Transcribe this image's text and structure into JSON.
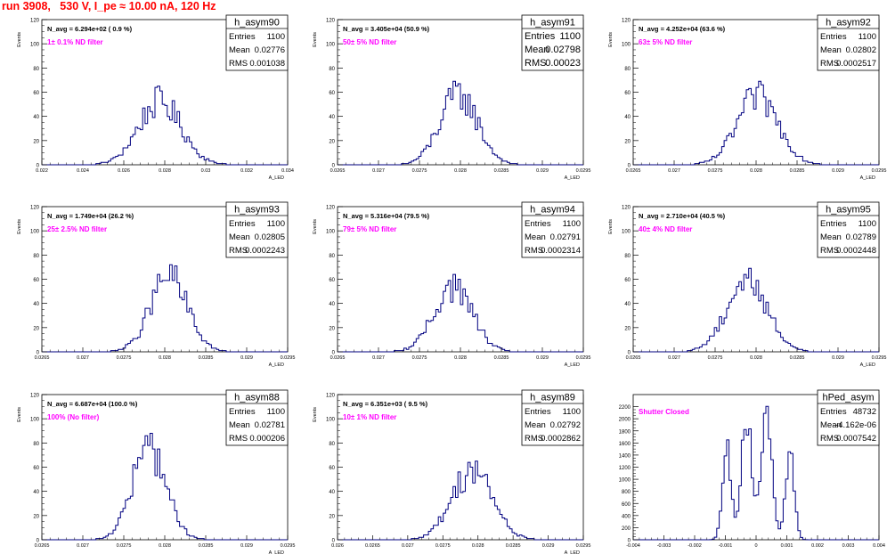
{
  "title": "run 3908,   530 V, I_pe ≈ 10.00 nA, 120 Hz",
  "colors": {
    "line": "#000080",
    "annotation": "#ff00ff",
    "title": "#ff0000",
    "axis": "#000000"
  },
  "chart_data": [
    {
      "type": "histogram",
      "name": "h_asym90",
      "ylabel": "Events",
      "xlabel": "A_LED",
      "xlim": [
        0.022,
        0.034
      ],
      "ylim": [
        0,
        120
      ],
      "xticks": [
        "0.022",
        "0.024",
        "0.026",
        "0.028",
        "0.03",
        "0.032",
        "0.034"
      ],
      "xtick_values": [
        0.022,
        0.024,
        0.026,
        0.028,
        0.03,
        0.032,
        0.034
      ],
      "yticks": [
        "0",
        "20",
        "40",
        "60",
        "80",
        "100",
        "120"
      ],
      "ytick_values": [
        0,
        20,
        40,
        60,
        80,
        100,
        120
      ],
      "stats": {
        "Entries": "1100",
        "Mean": "0.02776",
        "RMS": "0.001038"
      },
      "navg": "N_avg = 6.294e+02 ( 0.9 %)",
      "label": "1± 0.1% ND filter",
      "mean": 0.02776,
      "rms": 0.001038,
      "entries": 1100,
      "peak": 52
    },
    {
      "type": "histogram",
      "name": "h_asym91",
      "ylabel": "Events",
      "xlabel": "A_LED",
      "xlim": [
        0.0265,
        0.0295
      ],
      "ylim": [
        0,
        120
      ],
      "xticks": [
        "0.0265",
        "0.027",
        "0.0275",
        "0.028",
        "0.0285",
        "0.029",
        "0.0295"
      ],
      "xtick_values": [
        0.0265,
        0.027,
        0.0275,
        0.028,
        0.0285,
        0.029,
        0.0295
      ],
      "yticks": [
        "0",
        "20",
        "40",
        "60",
        "80",
        "100",
        "120"
      ],
      "ytick_values": [
        0,
        20,
        40,
        60,
        80,
        100,
        120
      ],
      "stats": {
        "Entries": "1100",
        "Mean": "0.02798",
        "RMS": "0.00023"
      },
      "navg": "N_avg = 3.405e+04 (50.9 %)",
      "label": "50± 5% ND filter",
      "mean": 0.02798,
      "rms": 0.00023,
      "entries": 1100,
      "peak": 58
    },
    {
      "type": "histogram",
      "name": "h_asym92",
      "ylabel": "Events",
      "xlabel": "A_LED",
      "xlim": [
        0.0265,
        0.0295
      ],
      "ylim": [
        0,
        120
      ],
      "xticks": [
        "0.0265",
        "0.027",
        "0.0275",
        "0.028",
        "0.0285",
        "0.029",
        "0.0295"
      ],
      "xtick_values": [
        0.0265,
        0.027,
        0.0275,
        0.028,
        0.0285,
        0.029,
        0.0295
      ],
      "yticks": [
        "0",
        "20",
        "40",
        "60",
        "80",
        "100",
        "120"
      ],
      "ytick_values": [
        0,
        20,
        40,
        60,
        80,
        100,
        120
      ],
      "stats": {
        "Entries": "1100",
        "Mean": "0.02802",
        "RMS": "0.0002517"
      },
      "navg": "N_avg = 4.252e+04 (63.6 %)",
      "label": "63± 5% ND filter",
      "mean": 0.02802,
      "rms": 0.0002517,
      "entries": 1100,
      "peak": 56
    },
    {
      "type": "histogram",
      "name": "h_asym93",
      "ylabel": "Events",
      "xlabel": "A_LED",
      "xlim": [
        0.0265,
        0.0295
      ],
      "ylim": [
        0,
        120
      ],
      "xticks": [
        "0.0265",
        "0.027",
        "0.0275",
        "0.028",
        "0.0285",
        "0.029",
        "0.0295"
      ],
      "xtick_values": [
        0.0265,
        0.027,
        0.0275,
        0.028,
        0.0285,
        0.029,
        0.0295
      ],
      "yticks": [
        "0",
        "20",
        "40",
        "60",
        "80",
        "100",
        "120"
      ],
      "ytick_values": [
        0,
        20,
        40,
        60,
        80,
        100,
        120
      ],
      "stats": {
        "Entries": "1100",
        "Mean": "0.02805",
        "RMS": "0.0002243"
      },
      "navg": "N_avg = 1.749e+04 (26.2 %)",
      "label": "25± 2.5% ND filter",
      "mean": 0.02805,
      "rms": 0.0002243,
      "entries": 1100,
      "peak": 62
    },
    {
      "type": "histogram",
      "name": "h_asym94",
      "ylabel": "Events",
      "xlabel": "A_LED",
      "xlim": [
        0.0265,
        0.0295
      ],
      "ylim": [
        0,
        120
      ],
      "xticks": [
        "0.0265",
        "0.027",
        "0.0275",
        "0.028",
        "0.0285",
        "0.029",
        "0.0295"
      ],
      "xtick_values": [
        0.0265,
        0.027,
        0.0275,
        0.028,
        0.0285,
        0.029,
        0.0295
      ],
      "yticks": [
        "0",
        "20",
        "40",
        "60",
        "80",
        "100",
        "120"
      ],
      "ytick_values": [
        0,
        20,
        40,
        60,
        80,
        100,
        120
      ],
      "stats": {
        "Entries": "1100",
        "Mean": "0.02791",
        "RMS": "0.0002314"
      },
      "navg": "N_avg = 5.316e+04 (79.5 %)",
      "label": "79± 5% ND filter",
      "mean": 0.02791,
      "rms": 0.0002314,
      "entries": 1100,
      "peak": 54
    },
    {
      "type": "histogram",
      "name": "h_asym95",
      "ylabel": "Events",
      "xlabel": "A_LED",
      "xlim": [
        0.0265,
        0.0295
      ],
      "ylim": [
        0,
        120
      ],
      "xticks": [
        "0.0265",
        "0.027",
        "0.0275",
        "0.028",
        "0.0285",
        "0.029",
        "0.0295"
      ],
      "xtick_values": [
        0.0265,
        0.027,
        0.0275,
        0.028,
        0.0285,
        0.029,
        0.0295
      ],
      "yticks": [
        "0",
        "20",
        "40",
        "60",
        "80",
        "100",
        "120"
      ],
      "ytick_values": [
        0,
        20,
        40,
        60,
        80,
        100,
        120
      ],
      "stats": {
        "Entries": "1100",
        "Mean": "0.02789",
        "RMS": "0.0002448"
      },
      "navg": "N_avg = 2.710e+04 (40.5 %)",
      "label": "40± 4% ND filter",
      "mean": 0.02789,
      "rms": 0.0002448,
      "entries": 1100,
      "peak": 60
    },
    {
      "type": "histogram",
      "name": "h_asym88",
      "ylabel": "Events",
      "xlabel": "A_LED",
      "xlim": [
        0.0265,
        0.0295
      ],
      "ylim": [
        0,
        120
      ],
      "xticks": [
        "0.0265",
        "0.027",
        "0.0275",
        "0.028",
        "0.0285",
        "0.029",
        "0.0295"
      ],
      "xtick_values": [
        0.0265,
        0.027,
        0.0275,
        0.028,
        0.0285,
        0.029,
        0.0295
      ],
      "yticks": [
        "0",
        "20",
        "40",
        "60",
        "80",
        "100",
        "120"
      ],
      "ytick_values": [
        0,
        20,
        40,
        60,
        80,
        100,
        120
      ],
      "stats": {
        "Entries": "1100",
        "Mean": "0.02781",
        "RMS": "0.000206"
      },
      "navg": "N_avg = 6.687e+04 (100.0 %)",
      "label": "100% (No filter)",
      "mean": 0.02781,
      "rms": 0.000206,
      "entries": 1100,
      "peak": 76
    },
    {
      "type": "histogram",
      "name": "h_asym89",
      "ylabel": "Events",
      "xlabel": "A_LED",
      "xlim": [
        0.026,
        0.0295
      ],
      "ylim": [
        0,
        120
      ],
      "xticks": [
        "0.026",
        "0.0265",
        "0.027",
        "0.0275",
        "0.028",
        "0.0285",
        "0.029",
        "0.0295"
      ],
      "xtick_values": [
        0.026,
        0.0265,
        0.027,
        0.0275,
        0.028,
        0.0285,
        0.029,
        0.0295
      ],
      "yticks": [
        "0",
        "20",
        "40",
        "60",
        "80",
        "100",
        "120"
      ],
      "ytick_values": [
        0,
        20,
        40,
        60,
        80,
        100,
        120
      ],
      "stats": {
        "Entries": "1100",
        "Mean": "0.02792",
        "RMS": "0.0002862"
      },
      "navg": "N_avg = 6.351e+03 ( 9.5 %)",
      "label": "10± 1% ND filter",
      "mean": 0.02792,
      "rms": 0.0002862,
      "entries": 1100,
      "peak": 58
    },
    {
      "type": "histogram",
      "name": "hPed_asym",
      "ylabel": "",
      "xlabel": "",
      "xlim": [
        -0.004,
        0.004
      ],
      "ylim": [
        0,
        2400
      ],
      "xticks": [
        "-0.004",
        "-0.003",
        "-0.002",
        "-0.001",
        "0",
        "0.001",
        "0.002",
        "0.003",
        "0.004"
      ],
      "xtick_values": [
        -0.004,
        -0.003,
        -0.002,
        -0.001,
        0,
        0.001,
        0.002,
        0.003,
        0.004
      ],
      "yticks": [
        "0",
        "200",
        "400",
        "600",
        "800",
        "1000",
        "1200",
        "1400",
        "1600",
        "1800",
        "2000",
        "2200"
      ],
      "ytick_values": [
        0,
        200,
        400,
        600,
        800,
        1000,
        1200,
        1400,
        1600,
        1800,
        2000,
        2200
      ],
      "stats": {
        "Entries": "48732",
        "Mean": "-4.162e-06",
        "RMS": "0.0007542"
      },
      "navg": "",
      "label": "Shutter Closed",
      "mean": -4.162e-06,
      "rms": 0.0007542,
      "entries": 48732,
      "peak": 2240
    }
  ]
}
